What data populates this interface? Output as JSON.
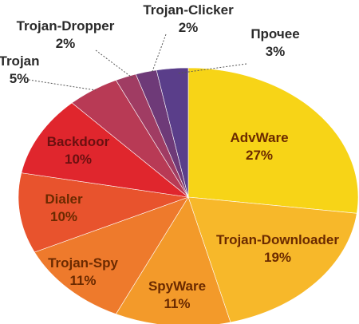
{
  "chart_data": {
    "type": "pie",
    "title": "",
    "slices": [
      {
        "label": "AdvWare",
        "value": 27,
        "display": "27%",
        "color": "#f7d417",
        "text_color": "#6b2a00"
      },
      {
        "label": "Trojan-Downloader",
        "value": 19,
        "display": "19%",
        "color": "#f7b82a",
        "text_color": "#6b2a00"
      },
      {
        "label": "SpyWare",
        "value": 11,
        "display": "11%",
        "color": "#f39a2a",
        "text_color": "#6b2a00"
      },
      {
        "label": "Trojan-Spy",
        "value": 11,
        "display": "11%",
        "color": "#ee7a2c",
        "text_color": "#6b2a00"
      },
      {
        "label": "Dialer",
        "value": 10,
        "display": "10%",
        "color": "#e8532d",
        "text_color": "#6b2a00"
      },
      {
        "label": "Backdoor",
        "value": 10,
        "display": "10%",
        "color": "#e0262d",
        "text_color": "#6b1010"
      },
      {
        "label": "Trojan",
        "value": 5,
        "display": "5%",
        "color": "#b83a55",
        "text_color": "#2a2a2a"
      },
      {
        "label": "Trojan-Dropper",
        "value": 2,
        "display": "2%",
        "color": "#a03c63",
        "text_color": "#2a2a2a"
      },
      {
        "label": "Trojan-Clicker",
        "value": 2,
        "display": "2%",
        "color": "#6e3a78",
        "text_color": "#2a2a2a"
      },
      {
        "label": "Прочее",
        "value": 3,
        "display": "3%",
        "color": "#5a3e8a",
        "text_color": "#2a2a2a"
      }
    ]
  }
}
